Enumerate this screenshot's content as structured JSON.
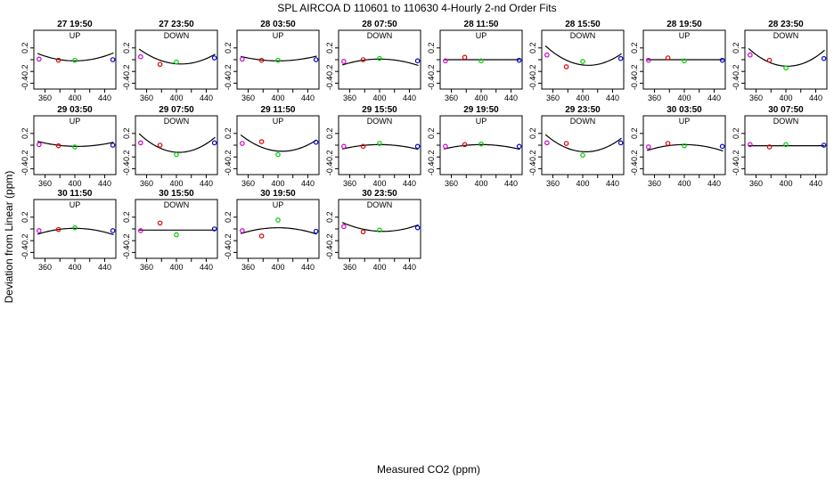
{
  "title": "SPL   AIRCOA D   110601 to 110630   4-Hourly 2-nd Order Fits",
  "ylabel": "Deviation from Linear (ppm)",
  "xlabel": "Measured CO2 (ppm)",
  "colors": {
    "magenta": "#cc00cc",
    "red": "#dd0000",
    "green": "#00cc00",
    "blue": "#0000cc",
    "curve": "#000000"
  },
  "chart_data": {
    "type": "scatter",
    "xlim": [
      345,
      455
    ],
    "ylim": [
      -0.5,
      0.5
    ],
    "xticks": [
      360,
      400,
      440
    ],
    "xticklabels": [
      "360",
      "400",
      "440"
    ],
    "yticks": [
      -0.4,
      -0.2,
      0.2
    ],
    "yticklabels": [
      "-0.4",
      "-0.2",
      "0.2"
    ],
    "point_x": [
      352,
      378,
      400,
      451
    ],
    "point_colors": [
      "magenta",
      "red",
      "green",
      "blue"
    ],
    "panels": [
      {
        "title": "27 19:50",
        "dir": "UP",
        "points": [
          0.01,
          -0.01,
          -0.01,
          0.0
        ],
        "coef": [
          5e-05,
          0.0,
          -0.02
        ]
      },
      {
        "title": "27 23:50",
        "dir": "DOWN",
        "points": [
          0.05,
          -0.08,
          -0.04,
          0.03
        ],
        "coef": [
          8e-05,
          -0.01,
          -0.07
        ]
      },
      {
        "title": "28 03:50",
        "dir": "UP",
        "points": [
          0.01,
          -0.01,
          -0.01,
          0.0
        ],
        "coef": [
          3e-05,
          0.0,
          -0.02
        ]
      },
      {
        "title": "28 07:50",
        "dir": "DOWN",
        "points": [
          -0.03,
          0.0,
          0.02,
          -0.02
        ],
        "coef": [
          -4e-05,
          0.0,
          0.01
        ]
      },
      {
        "title": "28 11:50",
        "dir": "UP",
        "points": [
          -0.02,
          0.04,
          -0.02,
          -0.01
        ],
        "coef": [
          0.0,
          0.0,
          0.0
        ]
      },
      {
        "title": "28 15:50",
        "dir": "DOWN",
        "points": [
          0.08,
          -0.12,
          -0.03,
          0.02
        ],
        "coef": [
          0.0001,
          -0.015,
          -0.09
        ]
      },
      {
        "title": "28 19:50",
        "dir": "UP",
        "points": [
          -0.01,
          0.03,
          -0.02,
          -0.01
        ],
        "coef": [
          0.0,
          0.0,
          0.0
        ]
      },
      {
        "title": "28 23:50",
        "dir": "DOWN",
        "points": [
          0.08,
          -0.01,
          -0.14,
          0.02
        ],
        "coef": [
          0.00011,
          -0.005,
          -0.11
        ]
      },
      {
        "title": "29 03:50",
        "dir": "UP",
        "points": [
          0.01,
          -0.01,
          -0.03,
          0.0
        ],
        "coef": [
          3e-05,
          -0.002,
          -0.02
        ]
      },
      {
        "title": "29 07:50",
        "dir": "DOWN",
        "points": [
          0.04,
          0.0,
          -0.16,
          0.04
        ],
        "coef": [
          0.00011,
          -0.008,
          -0.12
        ]
      },
      {
        "title": "29 11:50",
        "dir": "UP",
        "points": [
          0.03,
          0.06,
          -0.16,
          0.05
        ],
        "coef": [
          9e-05,
          -0.01,
          -0.1
        ]
      },
      {
        "title": "29 15:50",
        "dir": "DOWN",
        "points": [
          -0.02,
          -0.02,
          0.03,
          -0.02
        ],
        "coef": [
          -3e-05,
          0.0,
          0.01
        ]
      },
      {
        "title": "29 19:50",
        "dir": "UP",
        "points": [
          -0.02,
          0.01,
          0.02,
          -0.02
        ],
        "coef": [
          -3e-05,
          0.0,
          0.01
        ]
      },
      {
        "title": "29 23:50",
        "dir": "DOWN",
        "points": [
          0.04,
          0.03,
          -0.17,
          0.04
        ],
        "coef": [
          0.0001,
          -0.008,
          -0.11
        ]
      },
      {
        "title": "30 03:50",
        "dir": "UP",
        "points": [
          -0.03,
          0.03,
          -0.01,
          -0.02
        ],
        "coef": [
          -4e-05,
          0.0,
          0.01
        ]
      },
      {
        "title": "30 07:50",
        "dir": "DOWN",
        "points": [
          0.01,
          -0.03,
          0.01,
          0.0
        ],
        "coef": [
          0.0,
          0.0,
          -0.01
        ]
      },
      {
        "title": "30 11:50",
        "dir": "UP",
        "points": [
          -0.03,
          -0.01,
          0.02,
          -0.03
        ],
        "coef": [
          -4e-05,
          0.0,
          0.01
        ]
      },
      {
        "title": "30 15:50",
        "dir": "DOWN",
        "points": [
          -0.03,
          0.1,
          -0.1,
          0.0
        ],
        "coef": [
          0.0,
          0.0,
          -0.02
        ]
      },
      {
        "title": "30 19:50",
        "dir": "UP",
        "points": [
          -0.03,
          -0.12,
          0.15,
          -0.04
        ],
        "coef": [
          -4e-05,
          0.0,
          0.02
        ]
      },
      {
        "title": "30 23:50",
        "dir": "DOWN",
        "points": [
          0.04,
          -0.05,
          -0.02,
          0.02
        ],
        "coef": [
          5e-05,
          -0.005,
          -0.04
        ]
      }
    ]
  }
}
